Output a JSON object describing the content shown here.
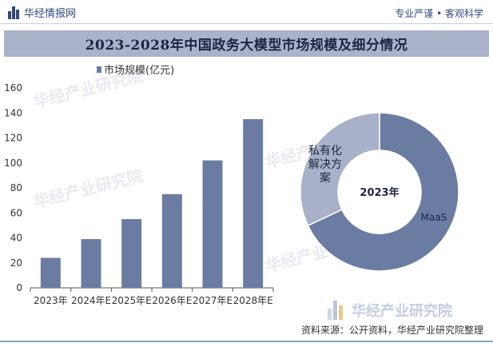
{
  "header": {
    "logo_text": "华经情报网",
    "slogan": "专业严谨 • 客观科学"
  },
  "title": "2023-2028年中国政务大模型市场规模及细分情况",
  "watermark": "华经产业研究院",
  "footer": {
    "logo_text": "华经产业研究院",
    "source": "资料来源：公开资料，华经产业研究院整理"
  },
  "colors": {
    "bar": "#6b7ca3",
    "pie_maas": "#6b7ca3",
    "pie_private": "#a8b1c7",
    "title_bg": "#a9b3c9",
    "brand": "#2f4a7a"
  },
  "chart_data": [
    {
      "type": "bar",
      "categories": [
        "2023年",
        "2024年E",
        "2025年E",
        "2026年E",
        "2027年E",
        "2028年E"
      ],
      "values": [
        24,
        39,
        55,
        75,
        102,
        135
      ],
      "series": [
        {
          "name": "市场规模(亿元)",
          "values": [
            24,
            39,
            55,
            75,
            102,
            135
          ]
        }
      ],
      "yticks": [
        "0",
        "20",
        "40",
        "60",
        "80",
        "100",
        "120",
        "140",
        "160"
      ],
      "ylim": [
        0,
        160
      ],
      "legend": "top-left",
      "grid": false
    },
    {
      "type": "pie",
      "center_label": "2023年",
      "slices": [
        {
          "label": "MaaS",
          "value": 68
        },
        {
          "label": "私有化解决方案",
          "value": 32
        }
      ]
    }
  ]
}
